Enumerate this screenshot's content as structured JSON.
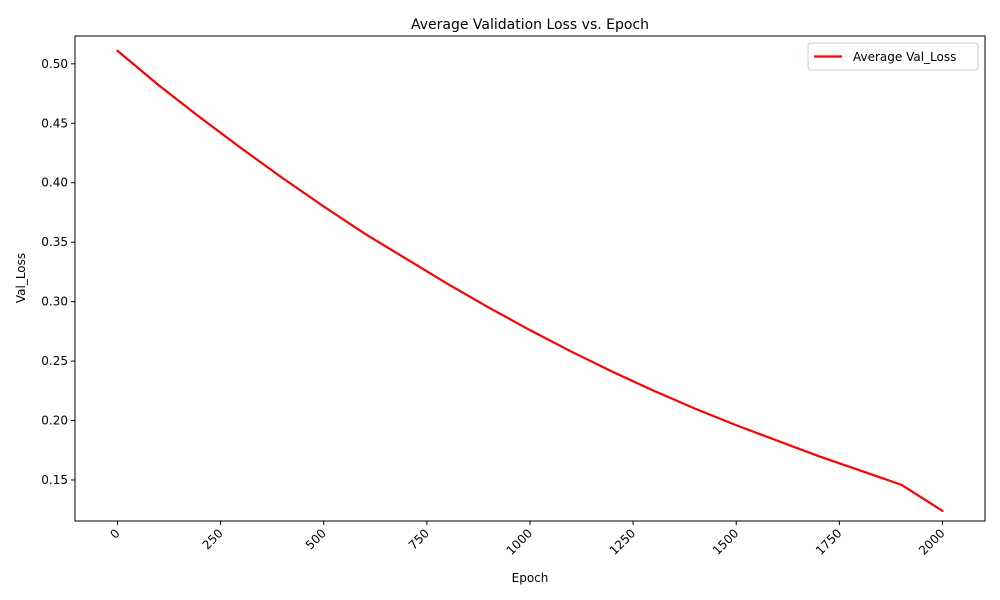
{
  "chart_data": {
    "type": "line",
    "title": "Average Validation Loss vs. Epoch",
    "xlabel": "Epoch",
    "ylabel": "Val_Loss",
    "xlim": [
      -103,
      2103
    ],
    "ylim": [
      0.1155,
      0.5234
    ],
    "xticks": [
      0,
      250,
      500,
      750,
      1000,
      1250,
      1500,
      1750,
      2000
    ],
    "xtick_labels": [
      "0",
      "250",
      "500",
      "750",
      "1000",
      "1250",
      "1500",
      "1750",
      "2000"
    ],
    "yticks": [
      0.15,
      0.2,
      0.25,
      0.3,
      0.35,
      0.4,
      0.45,
      0.5
    ],
    "ytick_labels": [
      "0.15",
      "0.20",
      "0.25",
      "0.30",
      "0.35",
      "0.40",
      "0.45",
      "0.50"
    ],
    "legend_position": "top-right",
    "grid": false,
    "series": [
      {
        "name": "Average Val_Loss",
        "color": "#ff0000",
        "x": [
          0,
          100,
          200,
          300,
          400,
          500,
          600,
          700,
          800,
          900,
          1000,
          1100,
          1200,
          1300,
          1400,
          1500,
          1600,
          1700,
          1800,
          1900,
          2000
        ],
        "y": [
          0.511,
          0.482,
          0.455,
          0.429,
          0.404,
          0.38,
          0.357,
          0.336,
          0.315,
          0.295,
          0.276,
          0.258,
          0.241,
          0.225,
          0.21,
          0.196,
          0.183,
          0.17,
          0.158,
          0.146,
          0.124
        ]
      }
    ]
  }
}
